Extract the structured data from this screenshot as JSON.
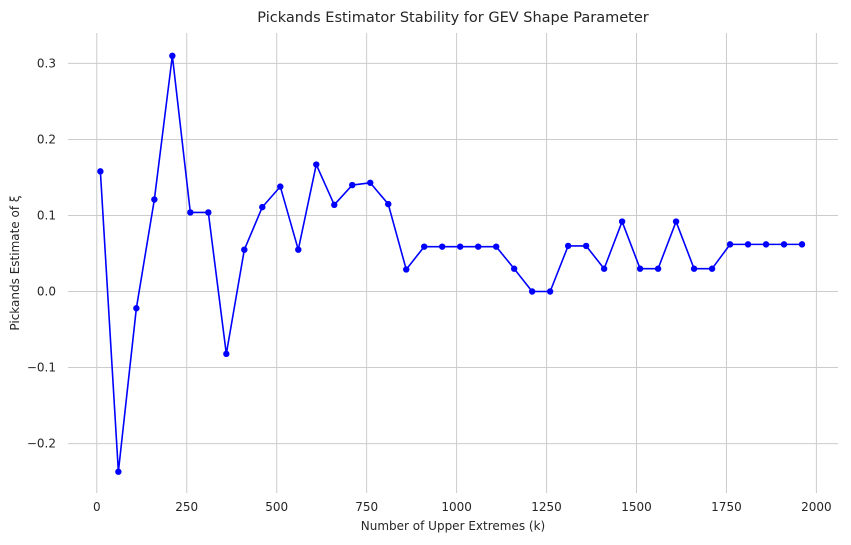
{
  "chart_data": {
    "type": "line",
    "title": "Pickands Estimator Stability for GEV Shape Parameter",
    "xlabel": "Number of Upper Extremes (k)",
    "ylabel": "Pickands Estimate of ξ",
    "xlim": [
      -80,
      2060
    ],
    "ylim": [
      -0.265,
      0.34
    ],
    "xticks": [
      0,
      250,
      500,
      750,
      1000,
      1250,
      1500,
      1750,
      2000
    ],
    "xtick_labels": [
      "0",
      "250",
      "500",
      "750",
      "1000",
      "1250",
      "1500",
      "1750",
      "2000"
    ],
    "yticks": [
      -0.2,
      -0.1,
      0.0,
      0.1,
      0.2,
      0.3
    ],
    "ytick_labels": [
      "−0.2",
      "−0.1",
      "0.0",
      "0.1",
      "0.2",
      "0.3"
    ],
    "grid": true,
    "line_color": "#0000ff",
    "grid_color": "#cccccc",
    "series": [
      {
        "name": "Pickands estimate",
        "x": [
          10,
          60,
          110,
          160,
          210,
          260,
          310,
          360,
          410,
          460,
          510,
          560,
          610,
          660,
          710,
          760,
          810,
          860,
          910,
          960,
          1010,
          1060,
          1110,
          1160,
          1210,
          1260,
          1310,
          1360,
          1410,
          1460,
          1510,
          1560,
          1610,
          1660,
          1710,
          1760,
          1810,
          1860,
          1910,
          1960
        ],
        "y": [
          0.158,
          -0.237,
          -0.022,
          0.121,
          0.31,
          0.104,
          0.104,
          -0.082,
          0.055,
          0.111,
          0.138,
          0.055,
          0.167,
          0.114,
          0.14,
          0.143,
          0.115,
          0.029,
          0.059,
          0.059,
          0.059,
          0.059,
          0.059,
          0.03,
          0.0,
          0.0,
          0.06,
          0.06,
          0.03,
          0.092,
          0.03,
          0.03,
          0.092,
          0.03,
          0.03,
          0.062,
          0.062,
          0.062,
          0.062,
          0.062
        ]
      }
    ]
  }
}
